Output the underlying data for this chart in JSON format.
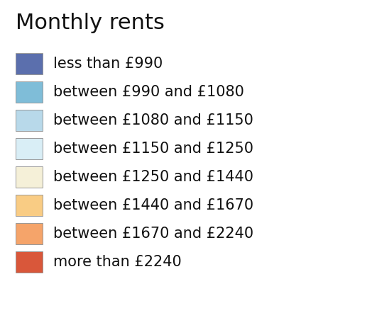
{
  "title": "Monthly rents",
  "title_fontsize": 22,
  "label_fontsize": 15,
  "background_color": "#ffffff",
  "text_color": "#111111",
  "items": [
    {
      "color": "#5b6fad",
      "label": "less than £990"
    },
    {
      "color": "#7fbdd8",
      "label": "between £990 and £1080"
    },
    {
      "color": "#b8d9ea",
      "label": "between £1080 and £1150"
    },
    {
      "color": "#d9eef6",
      "label": "between £1150 and £1250"
    },
    {
      "color": "#f5f0d8",
      "label": "between £1250 and £1440"
    },
    {
      "color": "#f9cc84",
      "label": "between £1440 and £1670"
    },
    {
      "color": "#f5a46a",
      "label": "between £1670 and £2240"
    },
    {
      "color": "#d9573a",
      "label": "more than £2240"
    }
  ],
  "figsize": [
    5.17,
    4.59
  ],
  "dpi": 100
}
